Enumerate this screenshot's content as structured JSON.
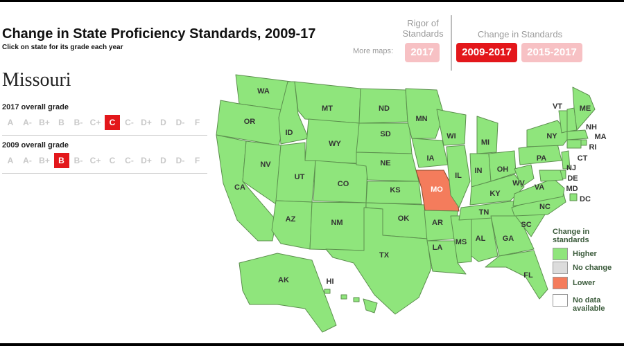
{
  "header": {
    "title": "Change in State Proficiency Standards, 2009-17",
    "subtitle": "Click on state for its grade each year"
  },
  "selected_state": {
    "name": "Missouri",
    "grade_2017_label": "2017 overall grade",
    "grade_2009_label": "2009 overall grade",
    "grades": [
      "A",
      "A-",
      "B+",
      "B",
      "B-",
      "C+",
      "C",
      "C-",
      "D+",
      "D",
      "D-",
      "F"
    ],
    "grade_2017": "C",
    "grade_2009": "B"
  },
  "controls": {
    "rigor_label": "Rigor of Standards",
    "more_maps_label": "More maps:",
    "change_label": "Change in Standards",
    "btn_2017": "2017",
    "btn_2009_2017": "2009-2017",
    "btn_2015_2017": "2015-2017",
    "active_button": "2009-2017"
  },
  "map": {
    "state_labels": [
      "WA",
      "OR",
      "CA",
      "ID",
      "NV",
      "MT",
      "WY",
      "UT",
      "AZ",
      "CO",
      "NM",
      "ND",
      "SD",
      "NE",
      "KS",
      "OK",
      "TX",
      "MN",
      "IA",
      "MO",
      "AR",
      "LA",
      "WI",
      "IL",
      "MS",
      "AL",
      "MI",
      "IN",
      "KY",
      "TN",
      "OH",
      "GA",
      "FL",
      "SC",
      "NC",
      "VA",
      "WV",
      "PA",
      "NY",
      "VT",
      "NH",
      "ME",
      "MA",
      "RI",
      "CT",
      "NJ",
      "DE",
      "MD",
      "DC",
      "AK",
      "HI"
    ],
    "highlighted_state": "MO",
    "colors": {
      "higher": "#8fe57c",
      "no_change": "#dcdcdc",
      "lower": "#f47c5c",
      "no_data": "#ffffff"
    }
  },
  "legend": {
    "title": "Change in standards",
    "items": [
      {
        "key": "higher",
        "label": "Higher"
      },
      {
        "key": "no_change",
        "label": "No change"
      },
      {
        "key": "lower",
        "label": "Lower"
      },
      {
        "key": "no_data",
        "label": "No data available"
      }
    ]
  }
}
